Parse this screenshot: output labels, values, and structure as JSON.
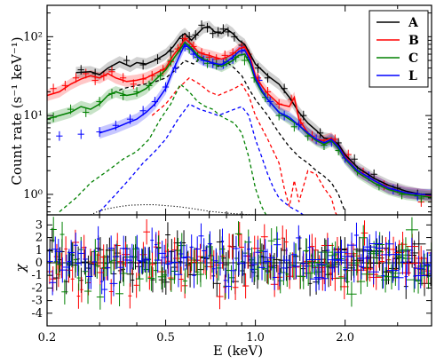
{
  "chart_data": [
    {
      "panel": "top",
      "type": "line",
      "xscale": "log",
      "yscale": "log",
      "xlim": [
        0.2,
        3.9
      ],
      "ylim": [
        0.55,
        250
      ],
      "ylabel": "Count rate (s⁻¹ keV⁻¹)",
      "yticks": [
        {
          "v": 1,
          "label": "10⁰"
        },
        {
          "v": 10,
          "label": "10¹"
        },
        {
          "v": 100,
          "label": "10²"
        }
      ],
      "legend": {
        "position": "top-right",
        "entries": [
          "A",
          "B",
          "C",
          "L"
        ]
      },
      "series": [
        {
          "name": "A",
          "color": "#000000",
          "model_x": [
            0.25,
            0.28,
            0.3,
            0.32,
            0.35,
            0.38,
            0.4,
            0.43,
            0.46,
            0.5,
            0.53,
            0.56,
            0.58,
            0.61,
            0.64,
            0.67,
            0.7,
            0.73,
            0.77,
            0.8,
            0.84,
            0.88,
            0.92,
            0.96,
            1.0,
            1.05,
            1.1,
            1.2,
            1.3,
            1.4,
            1.5,
            1.6,
            1.7,
            1.8,
            1.9,
            2.0,
            2.2,
            2.5,
            2.8,
            3.2,
            3.6,
            3.9
          ],
          "model_y": [
            35,
            36,
            33,
            40,
            48,
            42,
            47,
            45,
            50,
            60,
            75,
            100,
            110,
            90,
            110,
            130,
            135,
            115,
            110,
            125,
            110,
            90,
            80,
            60,
            45,
            38,
            32,
            25,
            17,
            11,
            8,
            6.5,
            5.2,
            5.0,
            4.3,
            3.2,
            2.2,
            1.6,
            1.3,
            1.1,
            1.0,
            1.0
          ],
          "data_x": [
            0.26,
            0.29,
            0.33,
            0.37,
            0.42,
            0.47,
            0.52,
            0.57,
            0.6,
            0.63,
            0.66,
            0.69,
            0.72,
            0.75,
            0.78,
            0.81,
            0.85,
            0.9,
            0.95,
            1.02,
            1.1,
            1.25,
            1.45,
            1.65,
            1.9,
            2.15,
            2.5,
            3.0,
            3.5
          ],
          "data_y": [
            38,
            34,
            38,
            50,
            44,
            52,
            65,
            95,
            100,
            105,
            140,
            130,
            110,
            115,
            125,
            115,
            100,
            78,
            55,
            40,
            30,
            22,
            10,
            6,
            4.5,
            2.8,
            1.8,
            1.2,
            1.0
          ]
        },
        {
          "name": "B",
          "color": "#ff0000",
          "model_x": [
            0.2,
            0.22,
            0.24,
            0.26,
            0.28,
            0.3,
            0.32,
            0.34,
            0.37,
            0.4,
            0.43,
            0.46,
            0.5,
            0.53,
            0.56,
            0.58,
            0.61,
            0.64,
            0.67,
            0.7,
            0.73,
            0.77,
            0.8,
            0.84,
            0.88,
            0.92,
            0.96,
            1.0,
            1.05,
            1.1,
            1.2,
            1.3,
            1.35,
            1.4,
            1.5,
            1.6,
            1.7,
            1.8,
            1.9,
            2.0,
            2.2,
            2.5,
            2.8,
            3.2,
            3.6,
            3.9
          ],
          "model_y": [
            18,
            20,
            25,
            29,
            32,
            30,
            34,
            30,
            27,
            28,
            30,
            34,
            40,
            58,
            75,
            95,
            80,
            65,
            60,
            58,
            55,
            52,
            55,
            60,
            70,
            75,
            55,
            32,
            24,
            19,
            14,
            13,
            17,
            9,
            6,
            5,
            4.8,
            5.2,
            4.0,
            3.0,
            2.0,
            1.5,
            1.2,
            1.05,
            1.0,
            0.95
          ],
          "data_x": [
            0.21,
            0.23,
            0.25,
            0.27,
            0.29,
            0.31,
            0.33,
            0.36,
            0.39,
            0.42,
            0.45,
            0.49,
            0.52,
            0.55,
            0.58,
            0.62,
            0.66,
            0.7,
            0.74,
            0.79,
            0.84,
            0.9,
            0.95,
            1.02,
            1.1,
            1.2,
            1.32,
            1.42,
            1.55,
            1.7,
            1.85,
            2.05,
            2.3,
            2.7,
            3.1,
            3.6
          ],
          "data_y": [
            22,
            24,
            30,
            34,
            28,
            32,
            36,
            30,
            25,
            29,
            32,
            38,
            48,
            70,
            95,
            75,
            62,
            55,
            52,
            58,
            62,
            72,
            60,
            30,
            20,
            14,
            16,
            8,
            5.5,
            4.6,
            5.0,
            3.2,
            1.9,
            1.3,
            1.0,
            0.8
          ]
        },
        {
          "name": "C",
          "color": "#008000",
          "model_x": [
            0.2,
            0.22,
            0.24,
            0.26,
            0.28,
            0.3,
            0.32,
            0.34,
            0.37,
            0.4,
            0.43,
            0.46,
            0.5,
            0.53,
            0.56,
            0.58,
            0.61,
            0.64,
            0.67,
            0.7,
            0.73,
            0.77,
            0.8,
            0.84,
            0.88,
            0.92,
            0.96,
            1.0,
            1.05,
            1.1,
            1.2,
            1.3,
            1.4,
            1.5,
            1.6,
            1.7,
            1.8,
            1.9,
            2.0,
            2.2,
            2.5,
            2.8,
            3.2,
            3.6,
            3.9
          ],
          "model_y": [
            9,
            10,
            11,
            13,
            12,
            14,
            18,
            20,
            18,
            19,
            22,
            28,
            38,
            52,
            70,
            85,
            72,
            58,
            52,
            48,
            46,
            42,
            45,
            50,
            58,
            60,
            45,
            28,
            20,
            16,
            11,
            9,
            7.5,
            5.8,
            4.8,
            4.3,
            4.8,
            3.8,
            2.8,
            1.9,
            1.4,
            1.15,
            1.0,
            0.95,
            0.92
          ],
          "data_x": [
            0.21,
            0.24,
            0.27,
            0.3,
            0.33,
            0.36,
            0.4,
            0.44,
            0.48,
            0.52,
            0.56,
            0.6,
            0.64,
            0.69,
            0.74,
            0.8,
            0.86,
            0.92,
            0.99,
            1.08,
            1.2,
            1.35,
            1.5,
            1.7,
            1.9,
            2.2,
            2.6,
            3.1,
            3.6
          ],
          "data_y": [
            9.5,
            12,
            11,
            15,
            19,
            18,
            20,
            24,
            32,
            50,
            72,
            70,
            55,
            46,
            44,
            48,
            55,
            50,
            30,
            17,
            10,
            7.2,
            5.5,
            4.2,
            3.6,
            2.0,
            1.3,
            1.0,
            0.9
          ]
        },
        {
          "name": "L",
          "color": "#0000ff",
          "model_x": [
            0.3,
            0.32,
            0.34,
            0.37,
            0.4,
            0.43,
            0.46,
            0.5,
            0.53,
            0.56,
            0.58,
            0.61,
            0.64,
            0.67,
            0.7,
            0.73,
            0.77,
            0.8,
            0.84,
            0.88,
            0.92,
            0.96,
            1.0,
            1.05,
            1.1,
            1.2,
            1.3,
            1.4,
            1.5,
            1.6,
            1.7,
            1.8,
            1.9,
            2.0,
            2.2,
            2.5,
            2.8,
            3.2,
            3.6,
            3.9
          ],
          "model_y": [
            6,
            6.5,
            7,
            8,
            9,
            11,
            14,
            22,
            38,
            60,
            80,
            68,
            55,
            50,
            48,
            46,
            44,
            48,
            55,
            65,
            68,
            50,
            30,
            21,
            16,
            11,
            9.5,
            7.5,
            6,
            5,
            4.5,
            5.0,
            4.0,
            2.9,
            2.0,
            1.5,
            1.2,
            1.05,
            1.0,
            0.98
          ],
          "data_x": [
            0.22,
            0.26,
            0.3,
            0.34,
            0.38,
            0.42,
            0.46,
            0.5,
            0.54,
            0.58,
            0.62,
            0.67,
            0.72,
            0.78,
            0.84,
            0.9,
            0.96,
            1.03,
            1.12,
            1.25,
            1.4,
            1.6,
            1.8,
            2.0,
            2.4,
            2.9,
            3.5
          ],
          "data_y": [
            5.5,
            5.8,
            6.2,
            7.5,
            9.0,
            11.5,
            15,
            23,
            40,
            75,
            60,
            50,
            46,
            45,
            52,
            66,
            52,
            28,
            15,
            10,
            7.6,
            5.0,
            4.6,
            2.9,
            1.7,
            1.15,
            0.95
          ]
        }
      ],
      "components_dashed": [
        {
          "color": "#000000",
          "x": [
            0.32,
            0.36,
            0.4,
            0.45,
            0.5,
            0.54,
            0.58,
            0.62,
            0.66,
            0.7,
            0.75,
            0.8,
            0.85,
            0.9,
            0.95,
            1.0,
            1.1,
            1.2,
            1.3,
            1.4,
            1.5,
            1.6,
            1.7,
            1.8,
            1.9,
            2.0
          ],
          "y": [
            18,
            22,
            24,
            26,
            30,
            38,
            50,
            45,
            55,
            48,
            42,
            48,
            40,
            32,
            22,
            16,
            10,
            6,
            4,
            3,
            2.5,
            2.0,
            1.7,
            1.4,
            1.0,
            0.6
          ]
        },
        {
          "color": "#ff0000",
          "x": [
            0.45,
            0.5,
            0.55,
            0.6,
            0.65,
            0.7,
            0.75,
            0.8,
            0.85,
            0.9,
            0.95,
            1.0,
            1.1,
            1.2,
            1.25,
            1.3,
            1.35,
            1.4,
            1.5,
            1.6,
            1.7,
            1.8,
            1.85,
            1.9
          ],
          "y": [
            10,
            14,
            22,
            30,
            25,
            20,
            18,
            20,
            22,
            25,
            18,
            10,
            5,
            2.5,
            1.2,
            0.7,
            1.5,
            0.8,
            2.0,
            1.8,
            1.2,
            0.9,
            0.6,
            0.5
          ]
        },
        {
          "color": "#008000",
          "x": [
            0.22,
            0.25,
            0.28,
            0.32,
            0.36,
            0.4,
            0.44,
            0.48,
            0.52,
            0.56,
            0.6,
            0.64,
            0.68,
            0.72,
            0.76,
            0.8,
            0.85,
            0.9,
            0.95,
            1.0,
            1.05,
            1.1
          ],
          "y": [
            0.6,
            0.9,
            1.4,
            2.0,
            2.8,
            3.5,
            5,
            9,
            14,
            25,
            20,
            15,
            13,
            12,
            10,
            9,
            8,
            6,
            3,
            1.2,
            0.7,
            0.5
          ]
        },
        {
          "color": "#0000ff",
          "x": [
            0.3,
            0.34,
            0.38,
            0.42,
            0.46,
            0.5,
            0.55,
            0.6,
            0.65,
            0.7,
            0.75,
            0.8,
            0.85,
            0.9,
            0.95,
            1.0,
            1.05,
            1.1,
            1.15,
            1.2,
            1.3,
            1.4,
            1.5
          ],
          "y": [
            0.6,
            1.0,
            1.6,
            2.5,
            3.5,
            5,
            9,
            14,
            12,
            11,
            10,
            11,
            12,
            13,
            10,
            5,
            3,
            1.8,
            1.2,
            0.9,
            0.7,
            0.6,
            0.5
          ]
        }
      ],
      "component_dotted": {
        "color": "#000000",
        "x": [
          0.28,
          0.3,
          0.32,
          0.35,
          0.38,
          0.42,
          0.46,
          0.5,
          0.55,
          0.6,
          0.65,
          0.7,
          0.8,
          0.9,
          1.0
        ],
        "y": [
          0.55,
          0.62,
          0.66,
          0.7,
          0.73,
          0.74,
          0.74,
          0.72,
          0.7,
          0.67,
          0.64,
          0.61,
          0.58,
          0.56,
          0.55
        ]
      }
    },
    {
      "panel": "bottom",
      "type": "scatter",
      "xscale": "log",
      "xlim": [
        0.2,
        3.9
      ],
      "ylim": [
        -5,
        3.8
      ],
      "xlabel": "E (keV)",
      "ylabel": "χ",
      "xticks": [
        {
          "v": 0.2,
          "label": "0.2"
        },
        {
          "v": 0.5,
          "label": "0.5"
        },
        {
          "v": 1.0,
          "label": "1.0"
        },
        {
          "v": 2.0,
          "label": "2.0"
        }
      ],
      "yticks": [
        3,
        2,
        1,
        0,
        -1,
        -2,
        -3,
        -4
      ],
      "residual_spread": [
        {
          "name": "A",
          "color": "#000000",
          "sigma": 0.9
        },
        {
          "name": "B",
          "color": "#ff0000",
          "sigma": 1.2
        },
        {
          "name": "C",
          "color": "#008000",
          "sigma": 1.1
        },
        {
          "name": "L",
          "color": "#0000ff",
          "sigma": 1.0
        }
      ]
    }
  ]
}
